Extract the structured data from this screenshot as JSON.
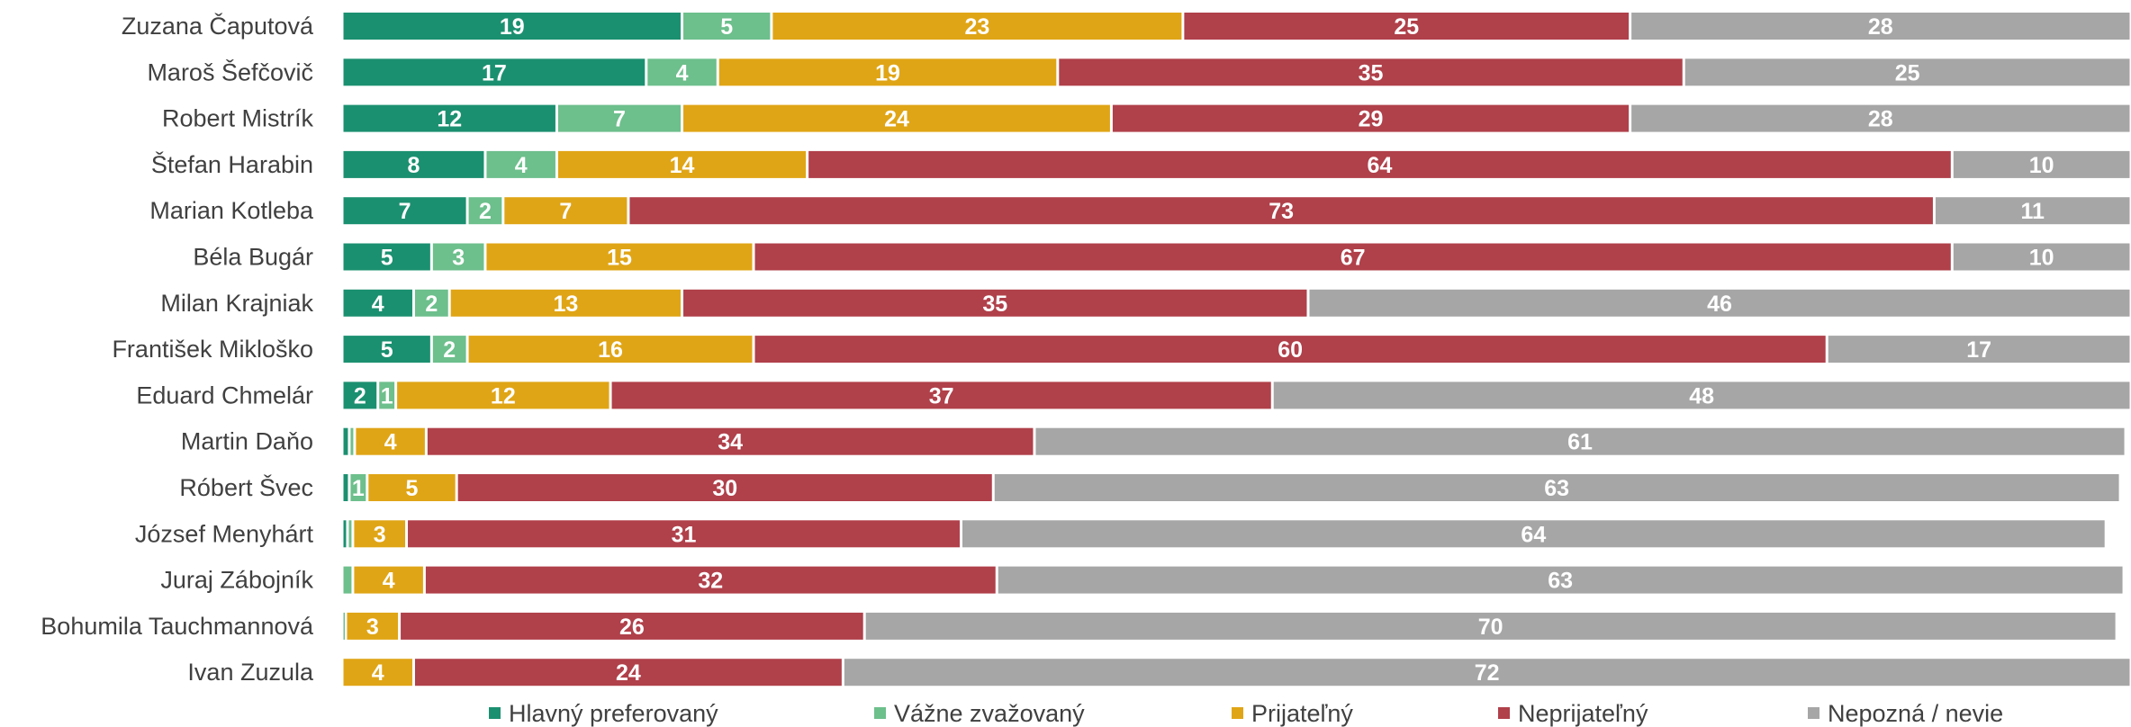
{
  "chart_data": {
    "type": "bar",
    "orientation": "horizontal",
    "stacked": true,
    "title": "",
    "xlabel": "",
    "ylabel": "",
    "xlim": [
      0,
      100
    ],
    "grid": false,
    "legend_position": "bottom",
    "categories": [
      "Zuzana Čaputová",
      "Maroš Šefčovič",
      "Robert Mistrík",
      "Štefan Harabin",
      "Marian Kotleba",
      "Béla Bugár",
      "Milan Krajniak",
      "František Mikloško",
      "Eduard Chmelár",
      "Martin Daňo",
      "Róbert Švec",
      "József Menyhárt",
      "Juraj Zábojník",
      "Bohumila Tauchmannová",
      "Ivan Zuzula"
    ],
    "series": [
      {
        "name": "Hlavný preferovaný",
        "color": "#1b9070",
        "values": [
          19,
          17,
          12,
          8,
          7,
          5,
          4,
          5,
          2,
          0.4,
          0.4,
          0.3,
          0,
          0,
          0
        ],
        "labels": [
          "19",
          "17",
          "12",
          "8",
          "7",
          "5",
          "4",
          "5",
          "2",
          "",
          "",
          "",
          "",
          "",
          ""
        ]
      },
      {
        "name": "Vážne zvažovaný",
        "color": "#6dbf8c",
        "values": [
          5,
          4,
          7,
          4,
          2,
          3,
          2,
          2,
          1,
          0.3,
          1,
          0.3,
          0.6,
          0.2,
          0
        ],
        "labels": [
          "5",
          "4",
          "7",
          "4",
          "2",
          "3",
          "2",
          "2",
          "1",
          "",
          "1",
          "",
          "",
          "",
          ""
        ]
      },
      {
        "name": "Prijateľný",
        "color": "#e0a516",
        "values": [
          23,
          19,
          24,
          14,
          7,
          15,
          13,
          16,
          12,
          4,
          5,
          3,
          4,
          3,
          4
        ],
        "labels": [
          "23",
          "19",
          "24",
          "14",
          "7",
          "15",
          "13",
          "16",
          "12",
          "4",
          "5",
          "3",
          "4",
          "3",
          "4"
        ]
      },
      {
        "name": "Neprijateľný",
        "color": "#b0404a",
        "values": [
          25,
          35,
          29,
          64,
          73,
          67,
          35,
          60,
          37,
          34,
          30,
          31,
          32,
          26,
          24
        ],
        "labels": [
          "25",
          "35",
          "29",
          "64",
          "73",
          "67",
          "35",
          "60",
          "37",
          "34",
          "30",
          "31",
          "32",
          "26",
          "24"
        ]
      },
      {
        "name": "Nepozná / nevie",
        "color": "#a6a6a6",
        "values": [
          28,
          25,
          28,
          10,
          11,
          10,
          46,
          17,
          48,
          61,
          63,
          64,
          63,
          70,
          72
        ],
        "labels": [
          "28",
          "25",
          "28",
          "10",
          "11",
          "10",
          "46",
          "17",
          "48",
          "61",
          "63",
          "64",
          "63",
          "70",
          "72"
        ]
      }
    ]
  }
}
